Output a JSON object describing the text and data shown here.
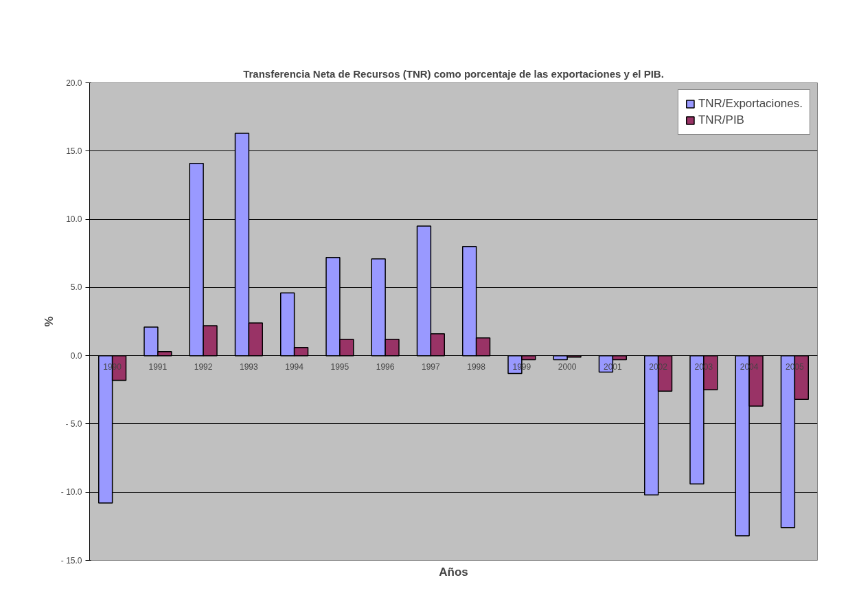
{
  "chart_data": {
    "type": "bar",
    "title": "Transferencia Neta de Recursos (TNR) como porcentaje de las exportaciones y el PIB.",
    "xlabel": "Años",
    "ylabel": "%",
    "categories": [
      "1990",
      "1991",
      "1992",
      "1993",
      "1994",
      "1995",
      "1996",
      "1997",
      "1998",
      "1999",
      "2000",
      "2001",
      "2002",
      "2003",
      "2004",
      "2005"
    ],
    "series": [
      {
        "name": "TNR/Exportaciones.",
        "color": "#9999ff",
        "values": [
          -10.8,
          2.1,
          14.1,
          16.3,
          4.6,
          7.2,
          7.1,
          9.5,
          8.0,
          -1.3,
          -0.3,
          -1.2,
          -10.2,
          -9.4,
          -13.2,
          -12.6
        ]
      },
      {
        "name": "TNR/PIB",
        "color": "#993366",
        "values": [
          -1.8,
          0.3,
          2.2,
          2.4,
          0.6,
          1.2,
          1.2,
          1.6,
          1.3,
          -0.3,
          -0.1,
          -0.3,
          -2.6,
          -2.5,
          -3.7,
          -3.2
        ]
      }
    ],
    "ylim": [
      -15,
      20
    ],
    "yticks": [
      {
        "value": -15,
        "label": "- 15.0"
      },
      {
        "value": -10,
        "label": "- 10.0"
      },
      {
        "value": -5,
        "label": "- 5.0"
      },
      {
        "value": 0,
        "label": "0.0"
      },
      {
        "value": 5,
        "label": "5.0"
      },
      {
        "value": 10,
        "label": "10.0"
      },
      {
        "value": 15,
        "label": "15.0"
      },
      {
        "value": 20,
        "label": "20.0"
      }
    ],
    "grid": "y",
    "legend": "top right"
  }
}
